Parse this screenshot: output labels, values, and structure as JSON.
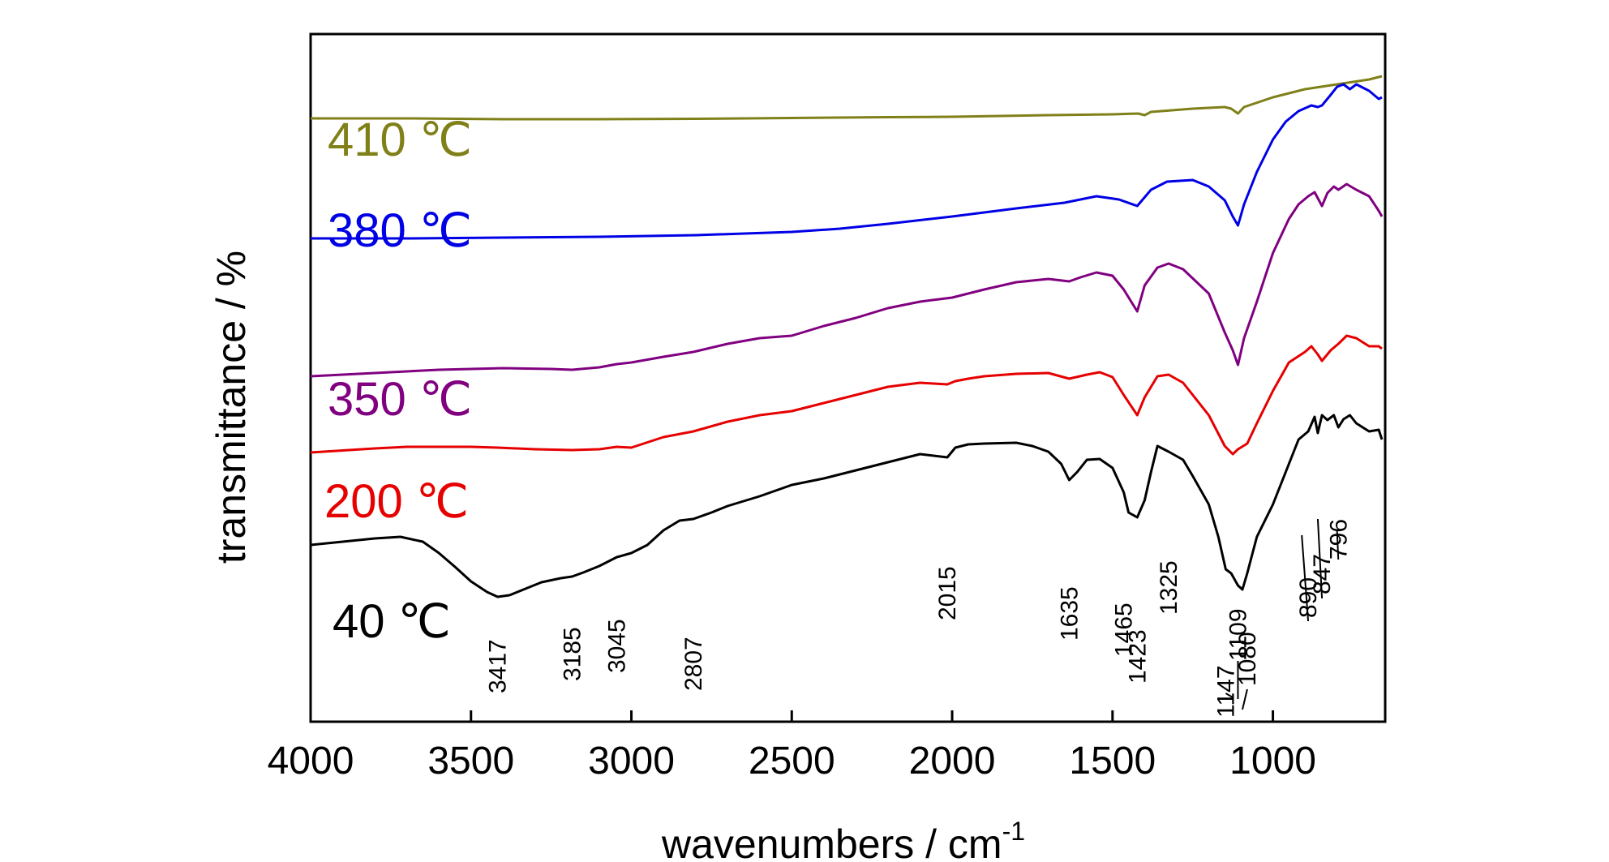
{
  "chart_data": {
    "type": "line",
    "xlabel": "wavenumbers / cm",
    "xlabel_superscript": "-1",
    "ylabel": "transmittance / %",
    "xlim": [
      4000,
      650
    ],
    "x_reversed": true,
    "y_ticks_shown": false,
    "grid": false,
    "x_ticks": [
      4000,
      3500,
      3000,
      2500,
      2000,
      1500,
      1000
    ],
    "x_tick_labels": [
      "4000",
      "3500",
      "3000",
      "2500",
      "2000",
      "1500",
      "1000"
    ],
    "series": [
      {
        "name": "410 ℃",
        "color": "#808019",
        "points": [
          [
            4000,
            104
          ],
          [
            3700,
            104
          ],
          [
            3400,
            105
          ],
          [
            3100,
            105
          ],
          [
            2800,
            104.5
          ],
          [
            2500,
            103.5
          ],
          [
            2200,
            102.5
          ],
          [
            2000,
            102
          ],
          [
            1700,
            100
          ],
          [
            1500,
            99
          ],
          [
            1420,
            98
          ],
          [
            1400,
            100
          ],
          [
            1380,
            96
          ],
          [
            1250,
            92
          ],
          [
            1150,
            90
          ],
          [
            1130,
            92
          ],
          [
            1109,
            98
          ],
          [
            1090,
            90
          ],
          [
            1000,
            78
          ],
          [
            900,
            68
          ],
          [
            800,
            62
          ],
          [
            700,
            56
          ],
          [
            660,
            52
          ]
        ]
      },
      {
        "name": "380 ℃",
        "color": "#0000e6",
        "points": [
          [
            4000,
            252
          ],
          [
            3700,
            252
          ],
          [
            3400,
            251
          ],
          [
            3100,
            250
          ],
          [
            2800,
            248
          ],
          [
            2500,
            244
          ],
          [
            2350,
            240
          ],
          [
            2200,
            234
          ],
          [
            2000,
            225
          ],
          [
            1800,
            215
          ],
          [
            1650,
            208
          ],
          [
            1550,
            200
          ],
          [
            1480,
            204
          ],
          [
            1423,
            212
          ],
          [
            1380,
            192
          ],
          [
            1330,
            182
          ],
          [
            1250,
            180
          ],
          [
            1200,
            188
          ],
          [
            1150,
            205
          ],
          [
            1125,
            225
          ],
          [
            1109,
            236
          ],
          [
            1090,
            210
          ],
          [
            1050,
            170
          ],
          [
            1000,
            130
          ],
          [
            960,
            108
          ],
          [
            920,
            95
          ],
          [
            880,
            88
          ],
          [
            860,
            90
          ],
          [
            847,
            88
          ],
          [
            820,
            75
          ],
          [
            800,
            65
          ],
          [
            780,
            62
          ],
          [
            760,
            68
          ],
          [
            740,
            62
          ],
          [
            700,
            70
          ],
          [
            670,
            80
          ],
          [
            660,
            78
          ]
        ]
      },
      {
        "name": "350 ℃",
        "color": "#800080",
        "points": [
          [
            4000,
            422
          ],
          [
            3800,
            418
          ],
          [
            3600,
            414
          ],
          [
            3400,
            412
          ],
          [
            3250,
            413
          ],
          [
            3185,
            414
          ],
          [
            3100,
            411
          ],
          [
            3045,
            407
          ],
          [
            3000,
            405
          ],
          [
            2900,
            398
          ],
          [
            2807,
            392
          ],
          [
            2700,
            382
          ],
          [
            2600,
            375
          ],
          [
            2500,
            372
          ],
          [
            2400,
            360
          ],
          [
            2300,
            350
          ],
          [
            2200,
            338
          ],
          [
            2100,
            330
          ],
          [
            2000,
            325
          ],
          [
            1900,
            315
          ],
          [
            1800,
            306
          ],
          [
            1700,
            302
          ],
          [
            1635,
            305
          ],
          [
            1600,
            300
          ],
          [
            1550,
            294
          ],
          [
            1500,
            298
          ],
          [
            1465,
            315
          ],
          [
            1423,
            342
          ],
          [
            1400,
            310
          ],
          [
            1360,
            288
          ],
          [
            1325,
            283
          ],
          [
            1280,
            290
          ],
          [
            1200,
            320
          ],
          [
            1150,
            368
          ],
          [
            1125,
            390
          ],
          [
            1109,
            408
          ],
          [
            1090,
            375
          ],
          [
            1050,
            330
          ],
          [
            1000,
            270
          ],
          [
            950,
            228
          ],
          [
            920,
            210
          ],
          [
            890,
            200
          ],
          [
            870,
            195
          ],
          [
            847,
            212
          ],
          [
            830,
            196
          ],
          [
            810,
            188
          ],
          [
            796,
            192
          ],
          [
            770,
            185
          ],
          [
            740,
            192
          ],
          [
            700,
            200
          ],
          [
            670,
            218
          ],
          [
            660,
            225
          ]
        ]
      },
      {
        "name": "200 ℃",
        "color": "#e60000",
        "points": [
          [
            4000,
            516
          ],
          [
            3800,
            511
          ],
          [
            3700,
            509
          ],
          [
            3600,
            509
          ],
          [
            3500,
            509
          ],
          [
            3417,
            510
          ],
          [
            3300,
            512
          ],
          [
            3185,
            513
          ],
          [
            3100,
            512
          ],
          [
            3045,
            509
          ],
          [
            3000,
            510
          ],
          [
            2900,
            497
          ],
          [
            2807,
            490
          ],
          [
            2700,
            478
          ],
          [
            2600,
            470
          ],
          [
            2500,
            465
          ],
          [
            2400,
            455
          ],
          [
            2300,
            445
          ],
          [
            2200,
            435
          ],
          [
            2100,
            430
          ],
          [
            2015,
            432
          ],
          [
            1990,
            428
          ],
          [
            1950,
            425
          ],
          [
            1900,
            422
          ],
          [
            1800,
            419
          ],
          [
            1700,
            418
          ],
          [
            1635,
            425
          ],
          [
            1580,
            420
          ],
          [
            1540,
            417
          ],
          [
            1500,
            423
          ],
          [
            1465,
            445
          ],
          [
            1423,
            470
          ],
          [
            1400,
            448
          ],
          [
            1360,
            422
          ],
          [
            1325,
            420
          ],
          [
            1280,
            430
          ],
          [
            1200,
            470
          ],
          [
            1150,
            508
          ],
          [
            1125,
            518
          ],
          [
            1109,
            512
          ],
          [
            1080,
            505
          ],
          [
            1050,
            480
          ],
          [
            1000,
            440
          ],
          [
            950,
            405
          ],
          [
            900,
            392
          ],
          [
            880,
            385
          ],
          [
            860,
            395
          ],
          [
            847,
            403
          ],
          [
            820,
            390
          ],
          [
            796,
            382
          ],
          [
            770,
            372
          ],
          [
            740,
            375
          ],
          [
            700,
            385
          ],
          [
            670,
            385
          ],
          [
            660,
            388
          ]
        ]
      },
      {
        "name": "40 ℃",
        "color": "#000000",
        "points": [
          [
            4000,
            630
          ],
          [
            3900,
            626
          ],
          [
            3800,
            622
          ],
          [
            3720,
            620
          ],
          [
            3650,
            626
          ],
          [
            3600,
            640
          ],
          [
            3550,
            657
          ],
          [
            3500,
            675
          ],
          [
            3450,
            688
          ],
          [
            3417,
            694
          ],
          [
            3380,
            692
          ],
          [
            3330,
            684
          ],
          [
            3280,
            676
          ],
          [
            3220,
            671
          ],
          [
            3185,
            669
          ],
          [
            3150,
            664
          ],
          [
            3100,
            656
          ],
          [
            3045,
            645
          ],
          [
            3000,
            640
          ],
          [
            2950,
            630
          ],
          [
            2900,
            612
          ],
          [
            2850,
            600
          ],
          [
            2807,
            598
          ],
          [
            2750,
            590
          ],
          [
            2700,
            582
          ],
          [
            2600,
            570
          ],
          [
            2500,
            556
          ],
          [
            2400,
            548
          ],
          [
            2300,
            538
          ],
          [
            2200,
            528
          ],
          [
            2100,
            518
          ],
          [
            2015,
            522
          ],
          [
            1990,
            510
          ],
          [
            1950,
            506
          ],
          [
            1900,
            505
          ],
          [
            1800,
            504
          ],
          [
            1750,
            508
          ],
          [
            1700,
            515
          ],
          [
            1660,
            530
          ],
          [
            1635,
            550
          ],
          [
            1610,
            540
          ],
          [
            1580,
            525
          ],
          [
            1540,
            524
          ],
          [
            1500,
            535
          ],
          [
            1465,
            565
          ],
          [
            1450,
            590
          ],
          [
            1423,
            596
          ],
          [
            1400,
            575
          ],
          [
            1380,
            540
          ],
          [
            1360,
            508
          ],
          [
            1340,
            512
          ],
          [
            1325,
            515
          ],
          [
            1280,
            525
          ],
          [
            1250,
            545
          ],
          [
            1200,
            580
          ],
          [
            1170,
            620
          ],
          [
            1147,
            660
          ],
          [
            1130,
            665
          ],
          [
            1109,
            680
          ],
          [
            1095,
            685
          ],
          [
            1080,
            665
          ],
          [
            1050,
            620
          ],
          [
            1000,
            580
          ],
          [
            960,
            540
          ],
          [
            920,
            500
          ],
          [
            890,
            490
          ],
          [
            870,
            472
          ],
          [
            860,
            492
          ],
          [
            847,
            470
          ],
          [
            830,
            476
          ],
          [
            810,
            470
          ],
          [
            796,
            485
          ],
          [
            780,
            475
          ],
          [
            760,
            470
          ],
          [
            740,
            480
          ],
          [
            700,
            490
          ],
          [
            670,
            488
          ],
          [
            660,
            500
          ]
        ]
      }
    ],
    "peak_annotations": [
      {
        "wavenumber": 3417,
        "label": "3417"
      },
      {
        "wavenumber": 3185,
        "label": "3185"
      },
      {
        "wavenumber": 3045,
        "label": "3045"
      },
      {
        "wavenumber": 2807,
        "label": "2807"
      },
      {
        "wavenumber": 2015,
        "label": "2015"
      },
      {
        "wavenumber": 1635,
        "label": "1635"
      },
      {
        "wavenumber": 1465,
        "label": "1465"
      },
      {
        "wavenumber": 1423,
        "label": "1423"
      },
      {
        "wavenumber": 1325,
        "label": "1325"
      },
      {
        "wavenumber": 1147,
        "label": "1147"
      },
      {
        "wavenumber": 1109,
        "label": "1109"
      },
      {
        "wavenumber": 1080,
        "label": "1080"
      },
      {
        "wavenumber": 890,
        "label": "890"
      },
      {
        "wavenumber": 847,
        "label": "847"
      },
      {
        "wavenumber": 796,
        "label": "796"
      }
    ]
  }
}
